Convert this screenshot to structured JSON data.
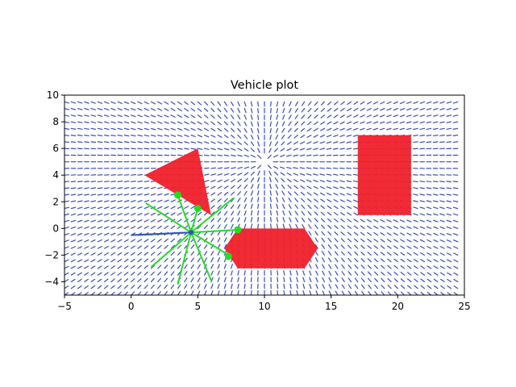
{
  "chart_data": {
    "type": "scatter",
    "title": "Vehicle plot",
    "xlabel": "",
    "ylabel": "",
    "xlim": [
      -5,
      25
    ],
    "ylim": [
      -5,
      10
    ],
    "xticks": [
      -5,
      0,
      5,
      10,
      15,
      20,
      25
    ],
    "yticks": [
      -4,
      -2,
      0,
      2,
      4,
      6,
      8,
      10
    ],
    "grid": false,
    "vector_field": {
      "x_range": [
        -5,
        24.5
      ],
      "y_range": [
        -5,
        9.5
      ],
      "spacing": 0.5,
      "goal": [
        10,
        5
      ],
      "color": "#3b4cc0"
    },
    "obstacles": [
      {
        "shape": "triangle",
        "vertices": [
          [
            1,
            4
          ],
          [
            5,
            6
          ],
          [
            6,
            1
          ]
        ],
        "color": "#f0202a"
      },
      {
        "shape": "rectangle",
        "vertices": [
          [
            17,
            1
          ],
          [
            21,
            1
          ],
          [
            21,
            7
          ],
          [
            17,
            7
          ]
        ],
        "color": "#f0202a"
      },
      {
        "shape": "hexagon",
        "vertices": [
          [
            7,
            -1.5
          ],
          [
            8,
            0
          ],
          [
            13,
            0
          ],
          [
            14,
            -1.5
          ],
          [
            13,
            -3
          ],
          [
            8,
            -3
          ]
        ],
        "color": "#f0202a"
      }
    ],
    "vehicle": {
      "position": [
        4.5,
        -0.3
      ],
      "heading_end": [
        0,
        -0.5
      ],
      "color": "#3b4cc0"
    },
    "sensor_rays": {
      "color": "#22dd22",
      "origin": [
        4.5,
        -0.3
      ],
      "endpoints": [
        [
          7.7,
          2.3
        ],
        [
          8.0,
          -0.1
        ],
        [
          7.5,
          -2.1
        ],
        [
          6.0,
          -3.9
        ],
        [
          3.5,
          -4.2
        ],
        [
          1.5,
          -2.9
        ],
        [
          0.5,
          -0.5
        ],
        [
          1.1,
          1.9
        ],
        [
          3.5,
          2.5
        ],
        [
          5.0,
          1.5
        ]
      ],
      "hits": [
        [
          3.5,
          2.5
        ],
        [
          5.0,
          1.5
        ],
        [
          8.0,
          -0.1
        ],
        [
          7.3,
          -2.1
        ]
      ]
    }
  }
}
